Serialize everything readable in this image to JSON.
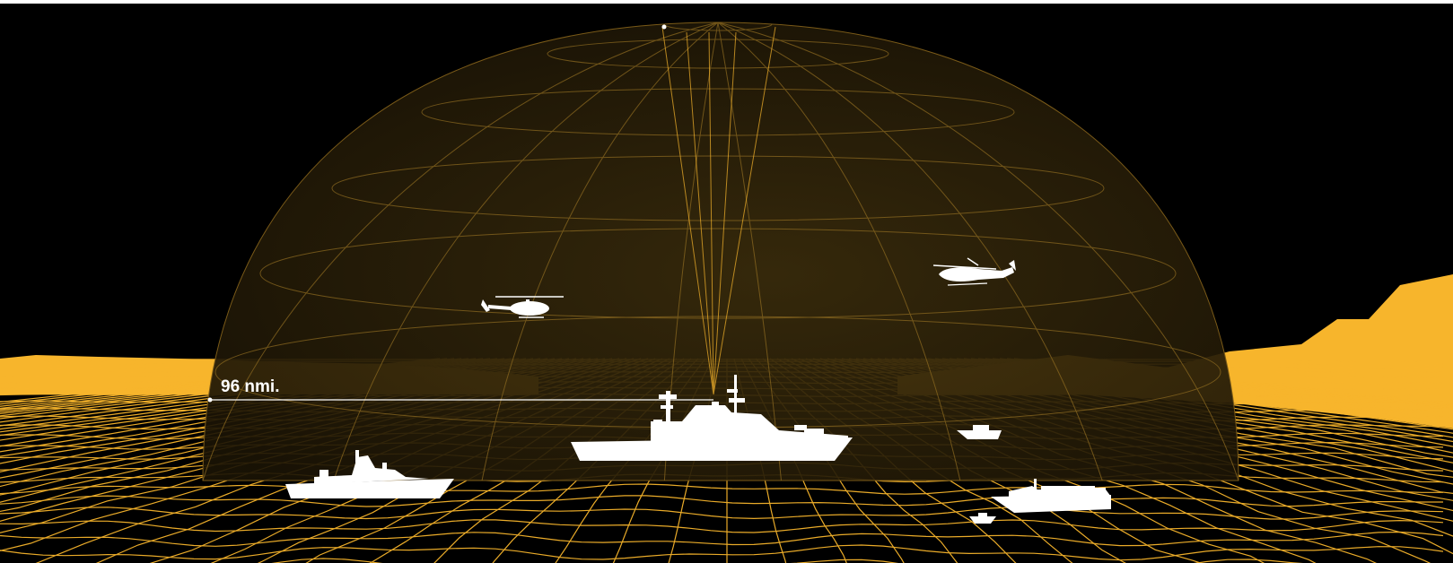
{
  "range": {
    "label": "96 nmi."
  },
  "colors": {
    "background": "#000000",
    "accent": "#f7b52c",
    "dome_fill": "#2a1f08",
    "silhouette": "#ffffff",
    "range_line": "#ffffff"
  },
  "icons": [
    "radar-dome-icon",
    "terrain-grid-icon",
    "mountain-silhouette-icon",
    "frigate-icon",
    "patrol-ship-icon",
    "cargo-ship-icon",
    "fast-boat-icon",
    "rib-boat-icon",
    "light-helicopter-icon",
    "transport-helicopter-icon"
  ]
}
